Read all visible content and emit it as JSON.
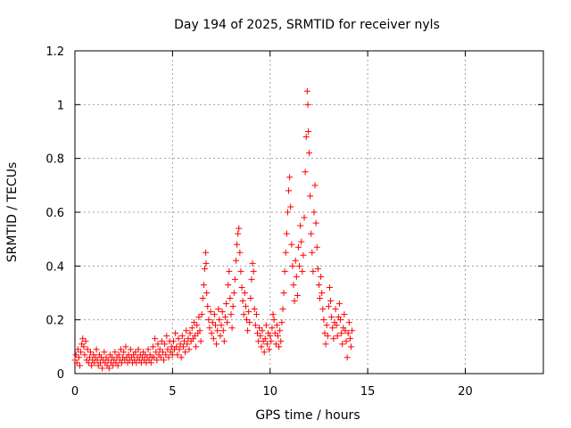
{
  "chart_data": {
    "type": "scatter",
    "title": "Day 194 of 2025, SRMTID for receiver nyls",
    "xlabel": "GPS time / hours",
    "ylabel": "SRMTID / TECUs",
    "xlim": [
      0,
      24
    ],
    "ylim": [
      0,
      1.2
    ],
    "xticks": [
      0,
      5,
      10,
      15,
      20
    ],
    "xtick_labels": [
      "0",
      "5",
      "10",
      "15",
      "20"
    ],
    "yticks": [
      0,
      0.2,
      0.4,
      0.6,
      0.8,
      1.0,
      1.2
    ],
    "ytick_labels": [
      "0",
      "0.2",
      "0.4",
      "0.6",
      "0.8",
      "1",
      "1.2"
    ],
    "grid": true,
    "marker": "+",
    "color": "#ff0000",
    "series": [
      {
        "name": "SRMTID",
        "points": [
          [
            0.0,
            0.05
          ],
          [
            0.05,
            0.07
          ],
          [
            0.1,
            0.04
          ],
          [
            0.15,
            0.09
          ],
          [
            0.2,
            0.06
          ],
          [
            0.25,
            0.03
          ],
          [
            0.3,
            0.08
          ],
          [
            0.35,
            0.11
          ],
          [
            0.4,
            0.13
          ],
          [
            0.45,
            0.1
          ],
          [
            0.5,
            0.07
          ],
          [
            0.55,
            0.12
          ],
          [
            0.6,
            0.05
          ],
          [
            0.65,
            0.09
          ],
          [
            0.7,
            0.04
          ],
          [
            0.75,
            0.06
          ],
          [
            0.8,
            0.08
          ],
          [
            0.85,
            0.03
          ],
          [
            0.9,
            0.05
          ],
          [
            0.95,
            0.07
          ],
          [
            1.0,
            0.04
          ],
          [
            1.05,
            0.06
          ],
          [
            1.1,
            0.09
          ],
          [
            1.15,
            0.05
          ],
          [
            1.2,
            0.03
          ],
          [
            1.25,
            0.07
          ],
          [
            1.3,
            0.04
          ],
          [
            1.35,
            0.06
          ],
          [
            1.4,
            0.02
          ],
          [
            1.45,
            0.05
          ],
          [
            1.5,
            0.08
          ],
          [
            1.55,
            0.04
          ],
          [
            1.6,
            0.06
          ],
          [
            1.65,
            0.03
          ],
          [
            1.7,
            0.05
          ],
          [
            1.75,
            0.02
          ],
          [
            1.8,
            0.07
          ],
          [
            1.85,
            0.04
          ],
          [
            1.9,
            0.06
          ],
          [
            1.95,
            0.03
          ],
          [
            2.0,
            0.05
          ],
          [
            2.05,
            0.08
          ],
          [
            2.1,
            0.04
          ],
          [
            2.15,
            0.06
          ],
          [
            2.2,
            0.03
          ],
          [
            2.25,
            0.07
          ],
          [
            2.3,
            0.05
          ],
          [
            2.35,
            0.09
          ],
          [
            2.4,
            0.04
          ],
          [
            2.45,
            0.06
          ],
          [
            2.5,
            0.08
          ],
          [
            2.55,
            0.05
          ],
          [
            2.6,
            0.1
          ],
          [
            2.65,
            0.06
          ],
          [
            2.7,
            0.04
          ],
          [
            2.75,
            0.07
          ],
          [
            2.8,
            0.05
          ],
          [
            2.85,
            0.09
          ],
          [
            2.9,
            0.06
          ],
          [
            2.95,
            0.04
          ],
          [
            3.0,
            0.07
          ],
          [
            3.05,
            0.05
          ],
          [
            3.1,
            0.08
          ],
          [
            3.15,
            0.04
          ],
          [
            3.2,
            0.06
          ],
          [
            3.25,
            0.09
          ],
          [
            3.3,
            0.05
          ],
          [
            3.35,
            0.07
          ],
          [
            3.4,
            0.04
          ],
          [
            3.45,
            0.06
          ],
          [
            3.5,
            0.08
          ],
          [
            3.55,
            0.05
          ],
          [
            3.6,
            0.07
          ],
          [
            3.65,
            0.04
          ],
          [
            3.7,
            0.06
          ],
          [
            3.75,
            0.09
          ],
          [
            3.8,
            0.05
          ],
          [
            3.85,
            0.07
          ],
          [
            3.9,
            0.04
          ],
          [
            3.95,
            0.06
          ],
          [
            4.0,
            0.1
          ],
          [
            4.05,
            0.06
          ],
          [
            4.1,
            0.13
          ],
          [
            4.15,
            0.08
          ],
          [
            4.2,
            0.05
          ],
          [
            4.25,
            0.11
          ],
          [
            4.3,
            0.07
          ],
          [
            4.35,
            0.09
          ],
          [
            4.4,
            0.06
          ],
          [
            4.45,
            0.12
          ],
          [
            4.5,
            0.08
          ],
          [
            4.55,
            0.05
          ],
          [
            4.6,
            0.11
          ],
          [
            4.65,
            0.07
          ],
          [
            4.7,
            0.14
          ],
          [
            4.75,
            0.09
          ],
          [
            4.8,
            0.06
          ],
          [
            4.85,
            0.12
          ],
          [
            4.9,
            0.08
          ],
          [
            4.95,
            0.1
          ],
          [
            5.0,
            0.07
          ],
          [
            5.05,
            0.12
          ],
          [
            5.1,
            0.09
          ],
          [
            5.15,
            0.15
          ],
          [
            5.2,
            0.1
          ],
          [
            5.25,
            0.07
          ],
          [
            5.3,
            0.13
          ],
          [
            5.35,
            0.09
          ],
          [
            5.4,
            0.11
          ],
          [
            5.45,
            0.06
          ],
          [
            5.5,
            0.14
          ],
          [
            5.55,
            0.1
          ],
          [
            5.6,
            0.12
          ],
          [
            5.65,
            0.08
          ],
          [
            5.7,
            0.16
          ],
          [
            5.75,
            0.11
          ],
          [
            5.8,
            0.13
          ],
          [
            5.85,
            0.09
          ],
          [
            5.9,
            0.15
          ],
          [
            5.95,
            0.12
          ],
          [
            6.0,
            0.17
          ],
          [
            6.05,
            0.13
          ],
          [
            6.1,
            0.19
          ],
          [
            6.15,
            0.14
          ],
          [
            6.2,
            0.1
          ],
          [
            6.25,
            0.18
          ],
          [
            6.3,
            0.15
          ],
          [
            6.35,
            0.21
          ],
          [
            6.4,
            0.16
          ],
          [
            6.45,
            0.12
          ],
          [
            6.5,
            0.22
          ],
          [
            6.55,
            0.28
          ],
          [
            6.6,
            0.33
          ],
          [
            6.65,
            0.39
          ],
          [
            6.7,
            0.45
          ],
          [
            6.72,
            0.41
          ],
          [
            6.75,
            0.3
          ],
          [
            6.8,
            0.25
          ],
          [
            6.85,
            0.2
          ],
          [
            6.9,
            0.17
          ],
          [
            6.95,
            0.23
          ],
          [
            7.0,
            0.15
          ],
          [
            7.05,
            0.19
          ],
          [
            7.1,
            0.13
          ],
          [
            7.15,
            0.22
          ],
          [
            7.2,
            0.18
          ],
          [
            7.25,
            0.11
          ],
          [
            7.3,
            0.16
          ],
          [
            7.35,
            0.24
          ],
          [
            7.4,
            0.2
          ],
          [
            7.45,
            0.14
          ],
          [
            7.5,
            0.18
          ],
          [
            7.55,
            0.23
          ],
          [
            7.6,
            0.16
          ],
          [
            7.65,
            0.12
          ],
          [
            7.7,
            0.21
          ],
          [
            7.75,
            0.26
          ],
          [
            7.8,
            0.19
          ],
          [
            7.85,
            0.33
          ],
          [
            7.9,
            0.38
          ],
          [
            7.95,
            0.28
          ],
          [
            8.0,
            0.22
          ],
          [
            8.05,
            0.17
          ],
          [
            8.1,
            0.25
          ],
          [
            8.15,
            0.3
          ],
          [
            8.2,
            0.35
          ],
          [
            8.25,
            0.42
          ],
          [
            8.3,
            0.48
          ],
          [
            8.35,
            0.52
          ],
          [
            8.4,
            0.54
          ],
          [
            8.45,
            0.45
          ],
          [
            8.5,
            0.38
          ],
          [
            8.55,
            0.32
          ],
          [
            8.6,
            0.27
          ],
          [
            8.65,
            0.22
          ],
          [
            8.7,
            0.3
          ],
          [
            8.75,
            0.25
          ],
          [
            8.8,
            0.2
          ],
          [
            8.85,
            0.16
          ],
          [
            8.9,
            0.23
          ],
          [
            8.95,
            0.19
          ],
          [
            9.0,
            0.28
          ],
          [
            9.05,
            0.35
          ],
          [
            9.1,
            0.41
          ],
          [
            9.15,
            0.38
          ],
          [
            9.2,
            0.24
          ],
          [
            9.25,
            0.18
          ],
          [
            9.3,
            0.22
          ],
          [
            9.35,
            0.15
          ],
          [
            9.4,
            0.12
          ],
          [
            9.45,
            0.17
          ],
          [
            9.5,
            0.14
          ],
          [
            9.55,
            0.1
          ],
          [
            9.6,
            0.16
          ],
          [
            9.65,
            0.12
          ],
          [
            9.7,
            0.08
          ],
          [
            9.75,
            0.13
          ],
          [
            9.8,
            0.18
          ],
          [
            9.85,
            0.11
          ],
          [
            9.9,
            0.15
          ],
          [
            9.95,
            0.09
          ],
          [
            10.0,
            0.14
          ],
          [
            10.05,
            0.12
          ],
          [
            10.1,
            0.17
          ],
          [
            10.15,
            0.22
          ],
          [
            10.2,
            0.2
          ],
          [
            10.25,
            0.15
          ],
          [
            10.3,
            0.11
          ],
          [
            10.35,
            0.18
          ],
          [
            10.4,
            0.14
          ],
          [
            10.45,
            0.1
          ],
          [
            10.5,
            0.16
          ],
          [
            10.55,
            0.12
          ],
          [
            10.6,
            0.19
          ],
          [
            10.65,
            0.24
          ],
          [
            10.7,
            0.3
          ],
          [
            10.75,
            0.38
          ],
          [
            10.8,
            0.45
          ],
          [
            10.85,
            0.52
          ],
          [
            10.9,
            0.6
          ],
          [
            10.95,
            0.68
          ],
          [
            11.0,
            0.73
          ],
          [
            11.05,
            0.62
          ],
          [
            11.1,
            0.48
          ],
          [
            11.15,
            0.4
          ],
          [
            11.2,
            0.33
          ],
          [
            11.25,
            0.27
          ],
          [
            11.3,
            0.42
          ],
          [
            11.35,
            0.36
          ],
          [
            11.4,
            0.29
          ],
          [
            11.45,
            0.47
          ],
          [
            11.5,
            0.4
          ],
          [
            11.55,
            0.55
          ],
          [
            11.6,
            0.49
          ],
          [
            11.65,
            0.38
          ],
          [
            11.7,
            0.44
          ],
          [
            11.75,
            0.58
          ],
          [
            11.8,
            0.75
          ],
          [
            11.85,
            0.88
          ],
          [
            11.9,
            1.05
          ],
          [
            11.93,
            1.0
          ],
          [
            11.96,
            0.9
          ],
          [
            12.0,
            0.82
          ],
          [
            12.05,
            0.66
          ],
          [
            12.1,
            0.52
          ],
          [
            12.15,
            0.45
          ],
          [
            12.2,
            0.38
          ],
          [
            12.25,
            0.6
          ],
          [
            12.3,
            0.7
          ],
          [
            12.35,
            0.56
          ],
          [
            12.4,
            0.47
          ],
          [
            12.45,
            0.39
          ],
          [
            12.5,
            0.33
          ],
          [
            12.55,
            0.28
          ],
          [
            12.6,
            0.36
          ],
          [
            12.65,
            0.3
          ],
          [
            12.7,
            0.24
          ],
          [
            12.75,
            0.2
          ],
          [
            12.8,
            0.15
          ],
          [
            12.85,
            0.11
          ],
          [
            12.9,
            0.18
          ],
          [
            12.95,
            0.14
          ],
          [
            13.0,
            0.25
          ],
          [
            13.05,
            0.32
          ],
          [
            13.1,
            0.27
          ],
          [
            13.15,
            0.21
          ],
          [
            13.2,
            0.17
          ],
          [
            13.25,
            0.13
          ],
          [
            13.3,
            0.19
          ],
          [
            13.35,
            0.24
          ],
          [
            13.4,
            0.18
          ],
          [
            13.45,
            0.14
          ],
          [
            13.5,
            0.21
          ],
          [
            13.55,
            0.26
          ],
          [
            13.6,
            0.2
          ],
          [
            13.65,
            0.15
          ],
          [
            13.7,
            0.11
          ],
          [
            13.75,
            0.17
          ],
          [
            13.8,
            0.22
          ],
          [
            13.85,
            0.16
          ],
          [
            13.9,
            0.12
          ],
          [
            13.95,
            0.06
          ],
          [
            14.0,
            0.15
          ],
          [
            14.05,
            0.19
          ],
          [
            14.1,
            0.13
          ],
          [
            14.15,
            0.1
          ],
          [
            14.2,
            0.16
          ]
        ]
      }
    ]
  }
}
